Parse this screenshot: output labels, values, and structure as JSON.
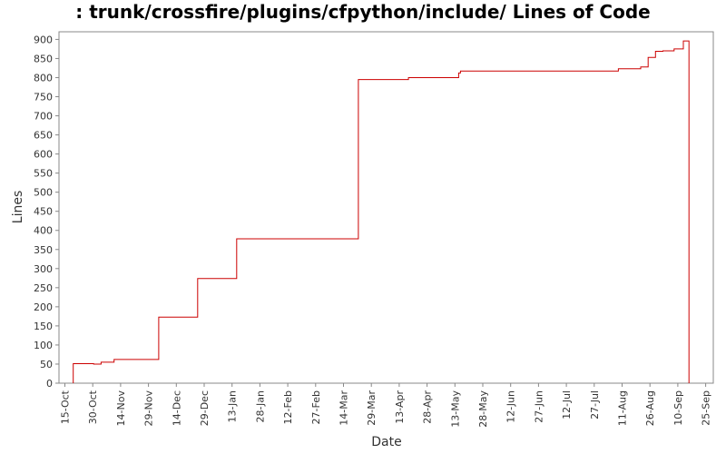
{
  "chart_data": {
    "type": "line",
    "title": ": trunk/crossfire/plugins/cfpython/include/ Lines of Code",
    "xlabel": "Date",
    "ylabel": "Lines",
    "ylim": [
      0,
      920
    ],
    "yticks": [
      0,
      50,
      100,
      150,
      200,
      250,
      300,
      350,
      400,
      450,
      500,
      550,
      600,
      650,
      700,
      750,
      800,
      850,
      900
    ],
    "xticks": [
      "15-Oct",
      "30-Oct",
      "14-Nov",
      "29-Nov",
      "14-Dec",
      "29-Dec",
      "13-Jan",
      "28-Jan",
      "12-Feb",
      "27-Feb",
      "14-Mar",
      "29-Mar",
      "13-Apr",
      "28-Apr",
      "13-May",
      "28-May",
      "12-Jun",
      "27-Jun",
      "12-Jul",
      "27-Jul",
      "11-Aug",
      "26-Aug",
      "10-Sep",
      "25-Sep"
    ],
    "step": true,
    "grid": false,
    "colors": {
      "series": "#cc0000",
      "axis": "#888888",
      "plot_border": "#888888"
    },
    "series": [
      {
        "x": [
          4.5,
          4.5,
          15.5,
          15.5,
          19.5,
          26.5,
          50.5,
          50.5,
          71.5,
          92.5,
          158.0,
          158.0,
          185.0,
          212.0,
          213.0,
          298.0,
          310.0,
          314.0,
          314.0,
          318.0,
          322.0,
          328.0,
          333.0,
          336.0
        ],
        "y": [
          0,
          51,
          51,
          50,
          55,
          62,
          170,
          173,
          274,
          378,
          378,
          795,
          800,
          812,
          817,
          823,
          828,
          828,
          853,
          869,
          870,
          875,
          896,
          0
        ]
      }
    ]
  }
}
